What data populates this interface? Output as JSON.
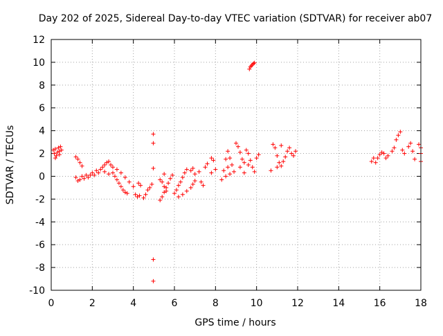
{
  "chart_data": {
    "type": "scatter",
    "title": "Day 202 of 2025, Sidereal Day-to-day VTEC variation (SDTVAR) for receiver ab07",
    "xlabel": "GPS time / hours",
    "ylabel": "SDTVAR / TECUs",
    "xlim": [
      0,
      18
    ],
    "ylim": [
      -10,
      12
    ],
    "xticks": [
      0,
      2,
      4,
      6,
      8,
      10,
      12,
      14,
      16,
      18
    ],
    "yticks": [
      -10,
      -8,
      -6,
      -4,
      -2,
      0,
      2,
      4,
      6,
      8,
      10,
      12
    ],
    "xtick_labels": [
      "0",
      "2",
      "4",
      "6",
      "8",
      "10",
      "12",
      "14",
      "16",
      "18"
    ],
    "ytick_labels": [
      "-10",
      "-8",
      "-6",
      "-4",
      "-2",
      "0",
      "2",
      "4",
      "6",
      "8",
      "10",
      "12"
    ],
    "grid": true,
    "marker": "+",
    "marker_color": "#ff0000",
    "series": [
      {
        "name": "ab07",
        "points": [
          [
            0.1,
            2.3
          ],
          [
            0.15,
            2.0
          ],
          [
            0.2,
            2.4
          ],
          [
            0.25,
            1.8
          ],
          [
            0.3,
            2.1
          ],
          [
            0.35,
            2.5
          ],
          [
            0.4,
            2.2
          ],
          [
            0.45,
            2.6
          ],
          [
            0.5,
            2.3
          ],
          [
            0.2,
            1.6
          ],
          [
            0.4,
            1.9
          ],
          [
            1.2,
            1.7
          ],
          [
            1.3,
            1.5
          ],
          [
            1.4,
            1.2
          ],
          [
            1.5,
            0.9
          ],
          [
            1.2,
            -0.1
          ],
          [
            1.3,
            -0.4
          ],
          [
            1.4,
            -0.3
          ],
          [
            1.5,
            0.0
          ],
          [
            1.6,
            -0.2
          ],
          [
            1.7,
            0.1
          ],
          [
            1.8,
            -0.1
          ],
          [
            1.9,
            0.1
          ],
          [
            2.0,
            0.3
          ],
          [
            2.1,
            0.1
          ],
          [
            2.2,
            0.5
          ],
          [
            2.3,
            0.3
          ],
          [
            2.4,
            0.6
          ],
          [
            2.5,
            0.8
          ],
          [
            2.6,
            1.0
          ],
          [
            2.7,
            1.2
          ],
          [
            2.8,
            1.3
          ],
          [
            2.9,
            1.0
          ],
          [
            3.0,
            0.8
          ],
          [
            2.6,
            0.4
          ],
          [
            2.8,
            0.2
          ],
          [
            3.0,
            0.3
          ],
          [
            3.1,
            0.0
          ],
          [
            3.2,
            -0.3
          ],
          [
            3.3,
            -0.6
          ],
          [
            3.4,
            -0.9
          ],
          [
            3.5,
            -1.2
          ],
          [
            3.6,
            -1.4
          ],
          [
            3.7,
            -1.5
          ],
          [
            3.2,
            0.6
          ],
          [
            3.4,
            0.3
          ],
          [
            3.6,
            -0.1
          ],
          [
            3.8,
            -0.5
          ],
          [
            4.0,
            -0.9
          ],
          [
            4.1,
            -1.6
          ],
          [
            4.2,
            -1.8
          ],
          [
            4.3,
            -1.7
          ],
          [
            4.25,
            -0.6
          ],
          [
            4.35,
            -0.8
          ],
          [
            4.5,
            -1.9
          ],
          [
            4.6,
            -1.6
          ],
          [
            4.7,
            -1.2
          ],
          [
            4.8,
            -1.0
          ],
          [
            4.9,
            -0.7
          ],
          [
            4.97,
            3.7
          ],
          [
            4.97,
            2.9
          ],
          [
            4.97,
            0.7
          ],
          [
            4.97,
            -7.3
          ],
          [
            4.97,
            -9.2
          ],
          [
            5.3,
            -2.1
          ],
          [
            5.4,
            -1.8
          ],
          [
            5.5,
            -1.4
          ],
          [
            5.6,
            -1.0
          ],
          [
            5.7,
            -0.6
          ],
          [
            5.8,
            -0.2
          ],
          [
            5.9,
            0.1
          ],
          [
            5.4,
            -0.5
          ],
          [
            5.5,
            -0.9
          ],
          [
            5.6,
            -1.3
          ],
          [
            5.3,
            -0.3
          ],
          [
            5.5,
            0.2
          ],
          [
            6.0,
            -1.5
          ],
          [
            6.1,
            -1.2
          ],
          [
            6.2,
            -0.8
          ],
          [
            6.3,
            -0.5
          ],
          [
            6.4,
            -0.1
          ],
          [
            6.5,
            0.3
          ],
          [
            6.6,
            0.6
          ],
          [
            6.2,
            -1.8
          ],
          [
            6.4,
            -1.6
          ],
          [
            6.6,
            -1.3
          ],
          [
            6.8,
            -1.0
          ],
          [
            6.9,
            -0.7
          ],
          [
            7.0,
            -0.4
          ],
          [
            6.8,
            0.5
          ],
          [
            6.9,
            0.7
          ],
          [
            7.0,
            0.2
          ],
          [
            7.2,
            0.4
          ],
          [
            7.3,
            -0.5
          ],
          [
            7.4,
            -0.8
          ],
          [
            7.5,
            0.8
          ],
          [
            7.6,
            1.1
          ],
          [
            7.8,
            1.6
          ],
          [
            7.9,
            1.4
          ],
          [
            8.0,
            0.6
          ],
          [
            7.8,
            0.3
          ],
          [
            8.3,
            -0.3
          ],
          [
            8.4,
            0.5
          ],
          [
            8.5,
            1.5
          ],
          [
            8.6,
            2.2
          ],
          [
            8.7,
            1.6
          ],
          [
            8.8,
            1.0
          ],
          [
            8.9,
            0.4
          ],
          [
            8.5,
            0.0
          ],
          [
            8.6,
            0.8
          ],
          [
            8.7,
            0.2
          ],
          [
            9.0,
            2.9
          ],
          [
            9.1,
            2.6
          ],
          [
            9.2,
            2.1
          ],
          [
            9.3,
            1.5
          ],
          [
            9.4,
            1.2
          ],
          [
            9.5,
            2.3
          ],
          [
            9.6,
            2.0
          ],
          [
            9.7,
            1.4
          ],
          [
            9.8,
            0.8
          ],
          [
            9.9,
            0.4
          ],
          [
            10.0,
            1.6
          ],
          [
            10.1,
            1.9
          ],
          [
            9.2,
            0.8
          ],
          [
            9.4,
            0.3
          ],
          [
            9.6,
            1.0
          ],
          [
            9.65,
            9.4
          ],
          [
            9.7,
            9.6
          ],
          [
            9.75,
            9.7
          ],
          [
            9.8,
            9.8
          ],
          [
            9.85,
            9.9
          ],
          [
            9.9,
            9.95
          ],
          [
            10.8,
            2.8
          ],
          [
            10.9,
            2.5
          ],
          [
            11.0,
            1.8
          ],
          [
            11.1,
            1.2
          ],
          [
            11.2,
            0.9
          ],
          [
            11.3,
            1.3
          ],
          [
            11.4,
            1.7
          ],
          [
            11.5,
            2.2
          ],
          [
            11.6,
            2.5
          ],
          [
            11.7,
            2.0
          ],
          [
            11.8,
            1.8
          ],
          [
            11.9,
            2.2
          ],
          [
            11.0,
            0.8
          ],
          [
            11.2,
            2.7
          ],
          [
            10.7,
            0.5
          ],
          [
            15.6,
            1.3
          ],
          [
            15.7,
            1.6
          ],
          [
            15.8,
            1.2
          ],
          [
            15.9,
            1.6
          ],
          [
            16.0,
            1.9
          ],
          [
            16.1,
            2.1
          ],
          [
            16.2,
            2.0
          ],
          [
            16.3,
            1.6
          ],
          [
            16.4,
            1.8
          ],
          [
            16.6,
            2.2
          ],
          [
            16.7,
            2.5
          ],
          [
            16.8,
            3.2
          ],
          [
            16.9,
            3.6
          ],
          [
            17.0,
            3.9
          ],
          [
            17.1,
            2.3
          ],
          [
            17.2,
            2.0
          ],
          [
            17.4,
            2.6
          ],
          [
            17.5,
            2.9
          ],
          [
            17.6,
            2.2
          ],
          [
            17.7,
            1.5
          ],
          [
            17.9,
            2.8
          ],
          [
            18.0,
            2.5
          ],
          [
            18.0,
            1.3
          ],
          [
            18.0,
            2.0
          ]
        ]
      }
    ]
  }
}
